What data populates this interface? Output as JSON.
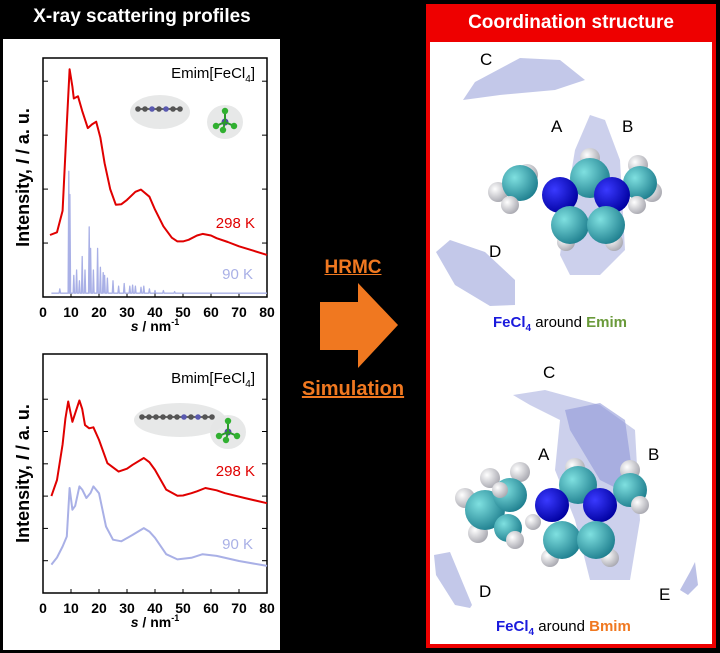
{
  "left_title": "X-ray scattering profiles",
  "right_title": "Coordination structure",
  "middle": {
    "top_label": "HRMC",
    "bottom_label": "Simulation",
    "arrow_color": "#f07820"
  },
  "structures": [
    {
      "labels": [
        "A",
        "B",
        "C",
        "D"
      ],
      "caption_anion": "FeCl",
      "caption_sub": "4",
      "caption_mid": " around ",
      "caption_cation": "Emim",
      "cation_color": "#6a9a3a"
    },
    {
      "labels": [
        "A",
        "B",
        "C",
        "D",
        "E"
      ],
      "caption_anion": "FeCl",
      "caption_sub": "4",
      "caption_mid": " around ",
      "caption_cation": "Bmim",
      "cation_color": "#f07820"
    }
  ],
  "colors": {
    "red": "#e00000",
    "blue90": "#a9b0e6",
    "anion_blue": "#1a1adc"
  },
  "chart_data": [
    {
      "type": "line",
      "title": "Emim[FeCl4]",
      "title_main": "Emim[FeCl",
      "title_sub": "4",
      "title_end": "]",
      "xlabel": "s / nm-1",
      "xlabel_s": "s",
      "xlabel_rest": " / nm",
      "xlabel_sup": "-1",
      "ylabel": "Intensity, I / a. u.",
      "ylabel_a": "Intensity, ",
      "ylabel_i": "I",
      "ylabel_b": " / a. u.",
      "xlim": [
        0,
        80
      ],
      "ylim": [
        0,
        4.43
      ],
      "xticks": [
        "0",
        "10",
        "20",
        "30",
        "40",
        "50",
        "60",
        "70",
        "80"
      ],
      "yticks": [
        1,
        2,
        3,
        4
      ],
      "series": [
        {
          "name": "298 K",
          "color": "#e00000",
          "x": [
            2.5,
            5,
            7,
            8.5,
            9.5,
            10.5,
            11,
            12.5,
            14,
            16,
            17.5,
            19,
            20.5,
            22,
            24,
            26,
            28,
            30,
            33,
            35,
            38,
            40,
            43,
            46,
            48,
            50,
            52,
            55,
            57,
            60,
            62,
            66,
            70,
            75,
            80
          ],
          "y": [
            1.15,
            1.2,
            1.6,
            3.2,
            4.22,
            3.9,
            3.68,
            3.72,
            3.45,
            3.13,
            3.2,
            3.25,
            2.95,
            2.48,
            2.0,
            1.71,
            1.72,
            1.8,
            1.95,
            1.99,
            1.86,
            1.62,
            1.31,
            1.1,
            1.03,
            1.03,
            1.06,
            1.14,
            1.17,
            1.14,
            1.09,
            1.02,
            0.94,
            0.86,
            0.78
          ]
        },
        {
          "name": "90 K",
          "color": "#a9b0e6",
          "baseline": 0.07,
          "spikes_s": [
            6,
            9.2,
            9.6,
            11,
            12,
            13,
            14,
            15,
            16.5,
            17,
            18,
            19.5,
            20.5,
            21.5,
            22,
            23,
            25,
            27,
            29,
            31,
            32,
            33,
            35,
            36,
            38,
            40,
            43,
            47
          ],
          "spikes_h": [
            0.15,
            2.33,
            1.9,
            0.4,
            0.5,
            0.3,
            0.75,
            0.5,
            1.3,
            0.9,
            0.5,
            0.9,
            0.55,
            0.45,
            0.4,
            0.35,
            0.3,
            0.2,
            0.25,
            0.2,
            0.22,
            0.2,
            0.18,
            0.2,
            0.15,
            0.12,
            0.12,
            0.1
          ]
        }
      ]
    },
    {
      "type": "line",
      "title": "Bmim[FeCl4]",
      "title_main": "Bmim[FeCl",
      "title_sub": "4",
      "title_end": "]",
      "xlabel": "s / nm-1",
      "xlabel_s": "s",
      "xlabel_rest": " / nm",
      "xlabel_sup": "-1",
      "ylabel": "Intensity, I / a. u.",
      "ylabel_a": "Intensity, ",
      "ylabel_i": "I",
      "ylabel_b": " / a. u.",
      "xlim": [
        0,
        80
      ],
      "ylim": [
        0,
        7.4
      ],
      "xticks": [
        "0",
        "10",
        "20",
        "30",
        "40",
        "50",
        "60",
        "70",
        "80"
      ],
      "yticks": [
        1,
        2,
        3,
        4,
        5,
        6
      ],
      "series": [
        {
          "name": "298 K",
          "color": "#e00000",
          "x": [
            3,
            5,
            7,
            8,
            9,
            10.5,
            12,
            13,
            14,
            15,
            16.5,
            18,
            20,
            23,
            27,
            30,
            32,
            36,
            38,
            40,
            44,
            48,
            50,
            53,
            55,
            58,
            62,
            65,
            72,
            80
          ],
          "y": [
            3.0,
            3.5,
            4.6,
            5.4,
            5.93,
            5.3,
            5.7,
            5.96,
            5.7,
            5.2,
            5.1,
            5.13,
            4.74,
            4.02,
            3.76,
            3.85,
            3.97,
            4.18,
            4.05,
            3.81,
            3.2,
            3.01,
            3.02,
            3.09,
            3.15,
            3.25,
            3.18,
            3.09,
            2.94,
            2.78
          ]
        },
        {
          "name": "90 K",
          "color": "#a9b0e6",
          "x": [
            3,
            5,
            7,
            8.5,
            9.5,
            10.5,
            11.5,
            13,
            14,
            15.5,
            17,
            18,
            20,
            22.5,
            25,
            28,
            32,
            36,
            38,
            40,
            44,
            48,
            53,
            57,
            62,
            70,
            80
          ],
          "y": [
            0.88,
            1.1,
            1.44,
            1.75,
            3.25,
            2.58,
            2.7,
            3.3,
            3.2,
            2.94,
            3.1,
            3.3,
            3.09,
            2.06,
            1.65,
            1.6,
            1.8,
            2.01,
            1.9,
            1.71,
            1.2,
            1.04,
            1.09,
            1.2,
            1.15,
            0.99,
            0.84
          ]
        }
      ]
    }
  ]
}
